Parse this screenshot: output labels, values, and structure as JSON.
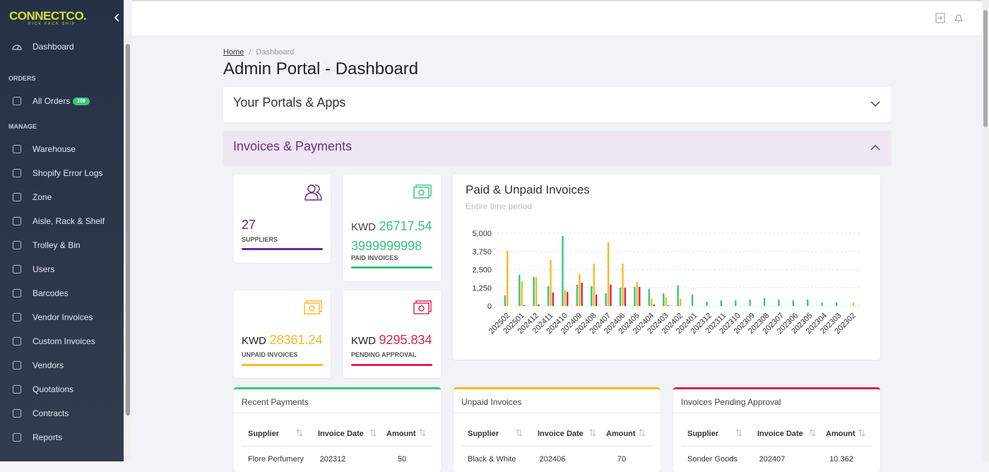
{
  "sidebar": {
    "logo": "CONNECTCO.",
    "tagline": "PICK PACK SHIP",
    "dashboard": "Dashboard",
    "badge": "109",
    "sections": [
      {
        "title": "ORDERS",
        "items": [
          "All Orders"
        ]
      },
      {
        "title": "MANAGE",
        "items": [
          "Warehouse",
          "Shopify Error Logs",
          "Zone",
          "Aisle, Rack & Shelf",
          "Trolley & Bin",
          "Users",
          "Barcodes",
          "Vendor Invoices",
          "Custom Invoices",
          "Vendors",
          "Quotations",
          "Contracts",
          "Reports"
        ]
      }
    ]
  },
  "breadcrumb": {
    "home": "Home",
    "current": "Dashboard"
  },
  "title": "Admin Portal - Dashboard",
  "panels": [
    "Your Portals & Apps",
    "Invoices & Payments"
  ],
  "stats": [
    {
      "value": "27",
      "label": "SUPPLIERS"
    },
    {
      "currency": "KWD",
      "value": "26717.543999999998",
      "label": "PAID INVOICES"
    },
    {
      "currency": "KWD",
      "value": "28361.24",
      "label": "UNPAID INVOICES"
    },
    {
      "currency": "KWD",
      "value": "9295.834",
      "label": "PENDING APPROVAL"
    }
  ],
  "chart_data": {
    "type": "bar",
    "title": "Paid & Unpaid Invoices",
    "subtitle": "Entire time period",
    "categories": [
      "202502",
      "202501",
      "202412",
      "202411",
      "202410",
      "202409",
      "202408",
      "202407",
      "202406",
      "202405",
      "202404",
      "202403",
      "202402",
      "202401",
      "202312",
      "202311",
      "202310",
      "202309",
      "202308",
      "202307",
      "202306",
      "202305",
      "202304",
      "202303",
      "202302"
    ],
    "series": [
      {
        "color": "#3ac47d",
        "values": [
          730,
          2140,
          1990,
          1360,
          4800,
          1460,
          1360,
          870,
          1260,
          1310,
          1170,
          870,
          1410,
          780,
          290,
          390,
          390,
          440,
          530,
          440,
          390,
          440,
          240,
          240,
          0
        ]
      },
      {
        "color": "#f7b924",
        "values": [
          3790,
          1700,
          1990,
          3160,
          1070,
          2180,
          2910,
          4370,
          2910,
          1650,
          490,
          580,
          490,
          0,
          0,
          0,
          0,
          0,
          0,
          0,
          0,
          0,
          0,
          0,
          240
        ]
      },
      {
        "color": "#d92550",
        "values": [
          0,
          50,
          100,
          920,
          970,
          1600,
          780,
          1460,
          1260,
          1310,
          100,
          50,
          0,
          0,
          0,
          0,
          0,
          0,
          0,
          0,
          0,
          0,
          0,
          0,
          0
        ]
      }
    ],
    "ylim": [
      0,
      5000
    ],
    "yticks": [
      0,
      {
        "value": 1250,
        "label": "1,250"
      },
      {
        "value": 2500,
        "label": "2,500"
      },
      {
        "value": 3750,
        "label": "3,750"
      },
      {
        "value": 5000,
        "label": "5,000"
      }
    ],
    "grid": true
  },
  "tables": [
    {
      "title": "Recent Payments",
      "columns": [
        "Supplier",
        "Invoice Date",
        "Amount"
      ],
      "rows": [
        [
          "Flore Perfumery",
          "202312",
          "50"
        ]
      ]
    },
    {
      "title": "Unpaid Invoices",
      "columns": [
        "Supplier",
        "Invoice Date",
        "Amount"
      ],
      "rows": [
        [
          "Black & White",
          "202406",
          "70"
        ]
      ]
    },
    {
      "title": "Invoices Pending Approval",
      "columns": [
        "Supplier",
        "Invoice Date",
        "Amount"
      ],
      "rows": [
        [
          "Sonder Goods",
          "202407",
          "10.362"
        ]
      ]
    }
  ]
}
